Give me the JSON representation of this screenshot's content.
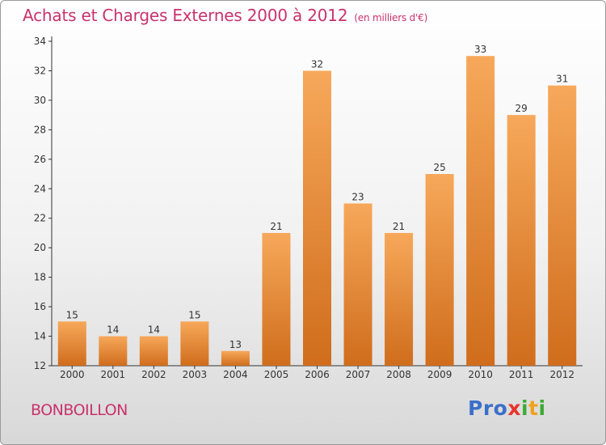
{
  "header": {
    "title": "Achats et Charges Externes 2000 à 2012",
    "unit": "(en milliers d'€)"
  },
  "footer": {
    "commune": "BONBOILLON",
    "logo": [
      "P",
      "r",
      "o",
      "x",
      "i",
      "t",
      "i"
    ]
  },
  "colors": {
    "title": "#c8336b",
    "bar_top": "#f7a85a",
    "bar_bottom": "#cf6d1c",
    "logo": [
      "#3b6fc9",
      "#3b6fc9",
      "#3b6fc9",
      "#e8332a",
      "#3daa35",
      "#f0a21c",
      "#3daa35"
    ]
  },
  "chart_data": {
    "type": "bar",
    "categories": [
      "2000",
      "2001",
      "2002",
      "2003",
      "2004",
      "2005",
      "2006",
      "2007",
      "2008",
      "2009",
      "2010",
      "2011",
      "2012"
    ],
    "values": [
      15,
      14,
      14,
      15,
      13,
      21,
      32,
      23,
      21,
      25,
      33,
      29,
      31
    ],
    "ylim": [
      12,
      34
    ],
    "yticks": [
      12,
      14,
      16,
      18,
      20,
      22,
      24,
      26,
      28,
      30,
      32,
      34
    ],
    "grid": false,
    "data_labels": true
  }
}
